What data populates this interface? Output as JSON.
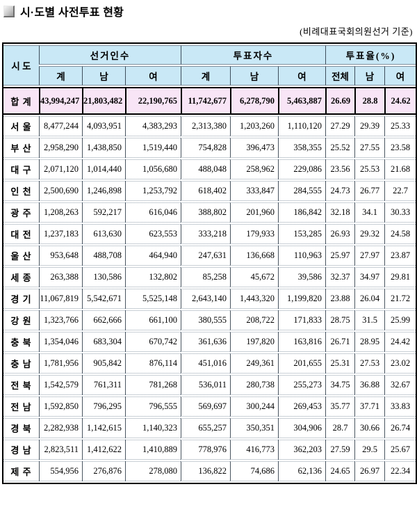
{
  "page": {
    "title": "시·도별 사전투표 현황",
    "subtitle": "(비례대표국회의원선거 기준)"
  },
  "colors": {
    "header_bg": "#c9e8f6",
    "total_row_bg": "#f8e5f6",
    "frame_border": "#000000"
  },
  "table": {
    "corner_header": "시 도",
    "groups": [
      {
        "label": "선거인수",
        "cols": [
          "계",
          "남",
          "여"
        ]
      },
      {
        "label": "투표자수",
        "cols": [
          "계",
          "남",
          "여"
        ]
      },
      {
        "label": "투표율(%)",
        "cols": [
          "전체",
          "남",
          "여"
        ]
      }
    ],
    "total_row": {
      "name": "합 계",
      "values": [
        "43,994,247",
        "21,803,482",
        "22,190,765",
        "11,742,677",
        "6,278,790",
        "5,463,887",
        "26.69",
        "28.8",
        "24.62"
      ]
    },
    "rows": [
      {
        "name": "서 울",
        "values": [
          "8,477,244",
          "4,093,951",
          "4,383,293",
          "2,313,380",
          "1,203,260",
          "1,110,120",
          "27.29",
          "29.39",
          "25.33"
        ]
      },
      {
        "name": "부 산",
        "values": [
          "2,958,290",
          "1,438,850",
          "1,519,440",
          "754,828",
          "396,473",
          "358,355",
          "25.52",
          "27.55",
          "23.58"
        ]
      },
      {
        "name": "대 구",
        "values": [
          "2,071,120",
          "1,014,440",
          "1,056,680",
          "488,048",
          "258,962",
          "229,086",
          "23.56",
          "25.53",
          "21.68"
        ]
      },
      {
        "name": "인 천",
        "values": [
          "2,500,690",
          "1,246,898",
          "1,253,792",
          "618,402",
          "333,847",
          "284,555",
          "24.73",
          "26.77",
          "22.7"
        ]
      },
      {
        "name": "광 주",
        "values": [
          "1,208,263",
          "592,217",
          "616,046",
          "388,802",
          "201,960",
          "186,842",
          "32.18",
          "34.1",
          "30.33"
        ]
      },
      {
        "name": "대 전",
        "values": [
          "1,237,183",
          "613,630",
          "623,553",
          "333,218",
          "179,933",
          "153,285",
          "26.93",
          "29.32",
          "24.58"
        ]
      },
      {
        "name": "울 산",
        "values": [
          "953,648",
          "488,708",
          "464,940",
          "247,631",
          "136,668",
          "110,963",
          "25.97",
          "27.97",
          "23.87"
        ]
      },
      {
        "name": "세 종",
        "values": [
          "263,388",
          "130,586",
          "132,802",
          "85,258",
          "45,672",
          "39,586",
          "32.37",
          "34.97",
          "29.81"
        ]
      },
      {
        "name": "경 기",
        "values": [
          "11,067,819",
          "5,542,671",
          "5,525,148",
          "2,643,140",
          "1,443,320",
          "1,199,820",
          "23.88",
          "26.04",
          "21.72"
        ]
      },
      {
        "name": "강 원",
        "values": [
          "1,323,766",
          "662,666",
          "661,100",
          "380,555",
          "208,722",
          "171,833",
          "28.75",
          "31.5",
          "25.99"
        ]
      },
      {
        "name": "충 북",
        "values": [
          "1,354,046",
          "683,304",
          "670,742",
          "361,636",
          "197,820",
          "163,816",
          "26.71",
          "28.95",
          "24.42"
        ]
      },
      {
        "name": "충 남",
        "values": [
          "1,781,956",
          "905,842",
          "876,114",
          "451,016",
          "249,361",
          "201,655",
          "25.31",
          "27.53",
          "23.02"
        ]
      },
      {
        "name": "전 북",
        "values": [
          "1,542,579",
          "761,311",
          "781,268",
          "536,011",
          "280,738",
          "255,273",
          "34.75",
          "36.88",
          "32.67"
        ]
      },
      {
        "name": "전 남",
        "values": [
          "1,592,850",
          "796,295",
          "796,555",
          "569,697",
          "300,244",
          "269,453",
          "35.77",
          "37.71",
          "33.83"
        ]
      },
      {
        "name": "경 북",
        "values": [
          "2,282,938",
          "1,142,615",
          "1,140,323",
          "655,257",
          "350,351",
          "304,906",
          "28.7",
          "30.66",
          "26.74"
        ]
      },
      {
        "name": "경 남",
        "values": [
          "2,823,511",
          "1,412,622",
          "1,410,889",
          "778,976",
          "416,773",
          "362,203",
          "27.59",
          "29.5",
          "25.67"
        ]
      },
      {
        "name": "제 주",
        "values": [
          "554,956",
          "276,876",
          "278,080",
          "136,822",
          "74,686",
          "62,136",
          "24.65",
          "26.97",
          "22.34"
        ]
      }
    ]
  }
}
